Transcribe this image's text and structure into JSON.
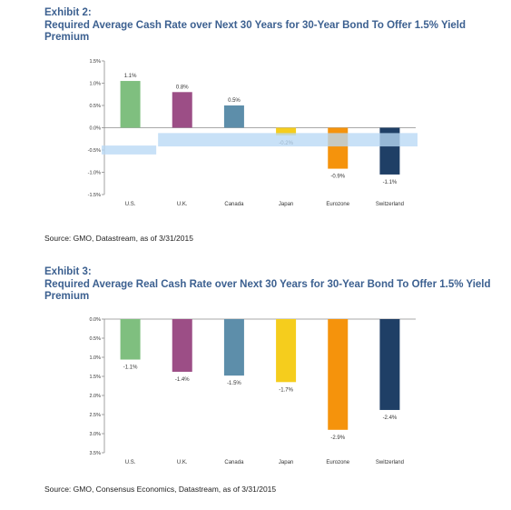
{
  "exhibit2": {
    "label": "Exhibit 2:",
    "title": "Required Average Cash Rate over Next 30 Years for 30-Year Bond To Offer 1.5% Yield Premium",
    "source": "Source: GMO, Datastream, as of 3/31/2015"
  },
  "exhibit3": {
    "label": "Exhibit 3:",
    "title": "Required Average Real Cash Rate over Next 30 Years for 30-Year Bond To Offer 1.5% Yield Premium",
    "source": "Source: GMO, Consensus Economics, Datastream, as of 3/31/2015"
  },
  "chart_data": [
    {
      "type": "bar",
      "categories": [
        "U.S.",
        "U.K.",
        "Canada",
        "Japan",
        "Eurozone",
        "Switzerland"
      ],
      "values": [
        1.05,
        0.8,
        0.5,
        -0.17,
        -0.92,
        -1.05
      ],
      "data_labels": [
        "1.1%",
        "0.8%",
        "0.5%",
        "-0.2%",
        "-0.9%",
        "-1.1%"
      ],
      "colors": [
        "#7fbf7f",
        "#9c4e86",
        "#5d8eaa",
        "#f5cd1d",
        "#f5930c",
        "#1f3f66"
      ],
      "ylim": [
        -1.5,
        1.5
      ],
      "yticks": [
        1.5,
        1.0,
        0.5,
        0.0,
        -0.5,
        -1.0,
        -1.5
      ],
      "ytick_labels": [
        "1.5%",
        "1.0%",
        "0.5%",
        "0.0%",
        "-0.5%",
        "-1.0%",
        "-1.5%"
      ],
      "overlay_band": {
        "color": "#b9d9f5",
        "segments": [
          {
            "x_start": "U.S.",
            "x_end": "U.S.",
            "y_top": -0.4,
            "y_bottom": -0.6
          },
          {
            "x_start": "U.K.",
            "x_end": "Switzerland",
            "y_top": -0.12,
            "y_bottom": -0.42
          }
        ]
      },
      "grid": false
    },
    {
      "type": "bar",
      "categories": [
        "U.S.",
        "U.K.",
        "Canada",
        "Japan",
        "Eurozone",
        "Switzerland"
      ],
      "values": [
        1.06,
        1.38,
        1.48,
        1.65,
        2.9,
        2.38
      ],
      "data_labels": [
        "-1.1%",
        "-1.4%",
        "-1.5%",
        "-1.7%",
        "-2.9%",
        "-2.4%"
      ],
      "colors": [
        "#7fbf7f",
        "#9c4e86",
        "#5d8eaa",
        "#f5cd1d",
        "#f5930c",
        "#1f3f66"
      ],
      "ylim": [
        0,
        3.5
      ],
      "y_inverted": true,
      "yticks": [
        0,
        0.5,
        1.0,
        1.5,
        2.0,
        2.5,
        3.0,
        3.5
      ],
      "ytick_labels": [
        "0.0%",
        "0.5%",
        "1.0%",
        "1.5%",
        "2.0%",
        "2.5%",
        "3.0%",
        "3.5%"
      ],
      "grid": false
    }
  ]
}
